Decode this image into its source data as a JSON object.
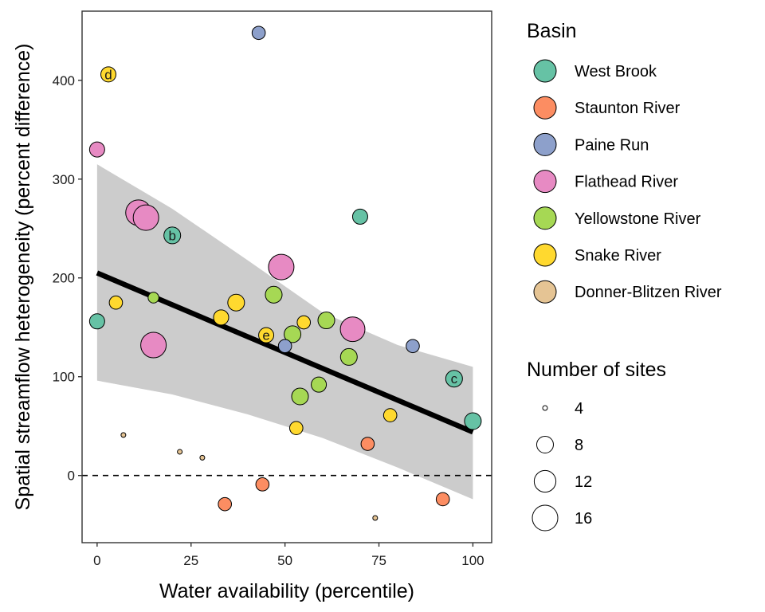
{
  "chart_data": {
    "type": "scatter",
    "xlabel": "Water availability (percentile)",
    "ylabel": "Spatial streamflow heterogeneity (percent difference)",
    "xlim": [
      -4,
      105
    ],
    "ylim": [
      -68,
      470
    ],
    "xticks": [
      0,
      25,
      50,
      75,
      100
    ],
    "yticks": [
      0,
      100,
      200,
      300,
      400
    ],
    "grid": false,
    "reference_line": {
      "y": 0,
      "style": "dashed"
    },
    "trend": {
      "x": [
        0,
        100
      ],
      "y": [
        205,
        44
      ],
      "ci_upper": [
        [
          0,
          315
        ],
        [
          20,
          270
        ],
        [
          40,
          218
        ],
        [
          60,
          165
        ],
        [
          80,
          132
        ],
        [
          100,
          110
        ]
      ],
      "ci_lower": [
        [
          0,
          96
        ],
        [
          20,
          82
        ],
        [
          40,
          62
        ],
        [
          60,
          38
        ],
        [
          80,
          8
        ],
        [
          100,
          -24
        ]
      ]
    },
    "legends": [
      {
        "title": "Basin",
        "type": "color",
        "placement": "right",
        "entries": [
          {
            "label": "West Brook",
            "color": "#66c2a5"
          },
          {
            "label": "Staunton River",
            "color": "#fc8d62"
          },
          {
            "label": "Paine Run",
            "color": "#8da0cb"
          },
          {
            "label": "Flathead River",
            "color": "#e78ac3"
          },
          {
            "label": "Yellowstone River",
            "color": "#a6d854"
          },
          {
            "label": "Snake River",
            "color": "#ffd92f"
          },
          {
            "label": "Donner-Blitzen River",
            "color": "#e5c494"
          }
        ]
      },
      {
        "title": "Number of sites",
        "type": "size",
        "placement": "right",
        "entries": [
          {
            "label": "4",
            "value": 4
          },
          {
            "label": "8",
            "value": 8
          },
          {
            "label": "12",
            "value": 12
          },
          {
            "label": "16",
            "value": 16
          }
        ]
      }
    ],
    "points": [
      {
        "basin": "Paine Run",
        "x": 43,
        "y": 448,
        "sites": 6,
        "label": ""
      },
      {
        "basin": "Snake River",
        "x": 3,
        "y": 406,
        "sites": 7,
        "label": "d"
      },
      {
        "basin": "Flathead River",
        "x": 0,
        "y": 330,
        "sites": 7,
        "label": ""
      },
      {
        "basin": "Flathead River",
        "x": 11,
        "y": 266,
        "sites": 16,
        "label": ""
      },
      {
        "basin": "Flathead River",
        "x": 13,
        "y": 261,
        "sites": 16,
        "label": ""
      },
      {
        "basin": "West Brook",
        "x": 20,
        "y": 243,
        "sites": 8,
        "label": "b"
      },
      {
        "basin": "West Brook",
        "x": 70,
        "y": 262,
        "sites": 7,
        "label": ""
      },
      {
        "basin": "Flathead River",
        "x": 49,
        "y": 211,
        "sites": 16,
        "label": ""
      },
      {
        "basin": "Yellowstone River",
        "x": 47,
        "y": 183,
        "sites": 8,
        "label": ""
      },
      {
        "basin": "Snake River",
        "x": 5,
        "y": 175,
        "sites": 6,
        "label": ""
      },
      {
        "basin": "Yellowstone River",
        "x": 15,
        "y": 180,
        "sites": 5,
        "label": ""
      },
      {
        "basin": "West Brook",
        "x": 0,
        "y": 156,
        "sites": 7,
        "label": ""
      },
      {
        "basin": "Snake River",
        "x": 37,
        "y": 175,
        "sites": 8,
        "label": ""
      },
      {
        "basin": "Snake River",
        "x": 33,
        "y": 160,
        "sites": 7,
        "label": ""
      },
      {
        "basin": "Flathead River",
        "x": 15,
        "y": 132,
        "sites": 16,
        "label": ""
      },
      {
        "basin": "Snake River",
        "x": 45,
        "y": 142,
        "sites": 7,
        "label": "e"
      },
      {
        "basin": "Yellowstone River",
        "x": 52,
        "y": 143,
        "sites": 8,
        "label": ""
      },
      {
        "basin": "Snake River",
        "x": 55,
        "y": 155,
        "sites": 6,
        "label": ""
      },
      {
        "basin": "Paine Run",
        "x": 50,
        "y": 131,
        "sites": 6,
        "label": ""
      },
      {
        "basin": "Yellowstone River",
        "x": 61,
        "y": 157,
        "sites": 8,
        "label": ""
      },
      {
        "basin": "Flathead River",
        "x": 68,
        "y": 148,
        "sites": 15,
        "label": ""
      },
      {
        "basin": "Yellowstone River",
        "x": 67,
        "y": 120,
        "sites": 8,
        "label": ""
      },
      {
        "basin": "Paine Run",
        "x": 84,
        "y": 131,
        "sites": 6,
        "label": ""
      },
      {
        "basin": "West Brook",
        "x": 95,
        "y": 98,
        "sites": 8,
        "label": "c"
      },
      {
        "basin": "Yellowstone River",
        "x": 59,
        "y": 92,
        "sites": 7,
        "label": ""
      },
      {
        "basin": "Yellowstone River",
        "x": 54,
        "y": 80,
        "sites": 8,
        "label": ""
      },
      {
        "basin": "Snake River",
        "x": 53,
        "y": 48,
        "sites": 6,
        "label": ""
      },
      {
        "basin": "Snake River",
        "x": 78,
        "y": 61,
        "sites": 6,
        "label": ""
      },
      {
        "basin": "West Brook",
        "x": 100,
        "y": 55,
        "sites": 8,
        "label": ""
      },
      {
        "basin": "Staunton River",
        "x": 72,
        "y": 32,
        "sites": 6,
        "label": ""
      },
      {
        "basin": "Donner-Blitzen River",
        "x": 7,
        "y": 41,
        "sites": 4,
        "label": ""
      },
      {
        "basin": "Donner-Blitzen River",
        "x": 22,
        "y": 24,
        "sites": 4,
        "label": ""
      },
      {
        "basin": "Donner-Blitzen River",
        "x": 28,
        "y": 18,
        "sites": 4,
        "label": ""
      },
      {
        "basin": "Staunton River",
        "x": 44,
        "y": -9,
        "sites": 6,
        "label": ""
      },
      {
        "basin": "Staunton River",
        "x": 34,
        "y": -29,
        "sites": 6,
        "label": ""
      },
      {
        "basin": "Staunton River",
        "x": 92,
        "y": -24,
        "sites": 6,
        "label": ""
      },
      {
        "basin": "Donner-Blitzen River",
        "x": 74,
        "y": -43,
        "sites": 4,
        "label": ""
      }
    ]
  }
}
